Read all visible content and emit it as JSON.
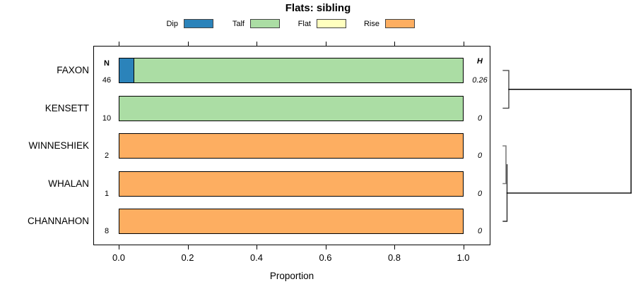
{
  "title": "Flats: sibling",
  "legend": [
    {
      "label": "Dip",
      "color": "#2b83ba"
    },
    {
      "label": "Talf",
      "color": "#abdda4"
    },
    {
      "label": "Flat",
      "color": "#ffffbf"
    },
    {
      "label": "Rise",
      "color": "#fdae61"
    }
  ],
  "columns": {
    "n_header": "N",
    "h_header": "H"
  },
  "axis": {
    "label": "Proportion",
    "ticks": [
      "0.0",
      "0.2",
      "0.4",
      "0.6",
      "0.8",
      "1.0"
    ]
  },
  "rows": [
    {
      "label": "FAXON",
      "n": "46",
      "h": "0.26",
      "segments": [
        {
          "category": "Dip",
          "value": 0.043
        },
        {
          "category": "Talf",
          "value": 0.957
        }
      ]
    },
    {
      "label": "KENSETT",
      "n": "10",
      "h": "0",
      "segments": [
        {
          "category": "Talf",
          "value": 1.0
        }
      ]
    },
    {
      "label": "WINNESHIEK",
      "n": "2",
      "h": "0",
      "segments": [
        {
          "category": "Rise",
          "value": 1.0
        }
      ]
    },
    {
      "label": "WHALAN",
      "n": "1",
      "h": "0",
      "segments": [
        {
          "category": "Rise",
          "value": 1.0
        }
      ]
    },
    {
      "label": "CHANNAHON",
      "n": "8",
      "h": "0",
      "segments": [
        {
          "category": "Rise",
          "value": 1.0
        }
      ]
    }
  ],
  "chart_data": {
    "type": "bar",
    "orientation": "horizontal",
    "stacked": true,
    "title": "Flats: sibling",
    "xlabel": "Proportion",
    "xlim": [
      0,
      1
    ],
    "xticks": [
      0.0,
      0.2,
      0.4,
      0.6,
      0.8,
      1.0
    ],
    "categories": [
      "FAXON",
      "KENSETT",
      "WINNESHIEK",
      "WHALAN",
      "CHANNAHON"
    ],
    "legend_entries": [
      "Dip",
      "Talf",
      "Flat",
      "Rise"
    ],
    "legend_position": "top",
    "series": [
      {
        "name": "Dip",
        "color": "#2b83ba",
        "values": [
          0.043,
          0,
          0,
          0,
          0
        ]
      },
      {
        "name": "Talf",
        "color": "#abdda4",
        "values": [
          0.957,
          1,
          0,
          0,
          0
        ]
      },
      {
        "name": "Flat",
        "color": "#ffffbf",
        "values": [
          0,
          0,
          0,
          0,
          0
        ]
      },
      {
        "name": "Rise",
        "color": "#fdae61",
        "values": [
          0,
          0,
          1,
          1,
          1
        ]
      }
    ],
    "n_column": {
      "header": "N",
      "values": [
        46,
        10,
        2,
        1,
        8
      ]
    },
    "h_column": {
      "header": "H",
      "values": [
        0.26,
        0,
        0,
        0,
        0
      ]
    },
    "dendrogram": {
      "position": "right",
      "merges": [
        {
          "members": [
            "FAXON",
            "KENSETT"
          ],
          "height": "low"
        },
        {
          "members": [
            "WINNESHIEK",
            "WHALAN"
          ],
          "height": "near-zero"
        },
        {
          "members": [
            [
              "WINNESHIEK",
              "WHALAN"
            ],
            "CHANNAHON"
          ],
          "height": "near-zero"
        },
        {
          "members": [
            [
              "FAXON",
              "KENSETT"
            ],
            [
              "WINNESHIEK",
              "WHALAN",
              "CHANNAHON"
            ]
          ],
          "height": "high"
        }
      ]
    }
  }
}
